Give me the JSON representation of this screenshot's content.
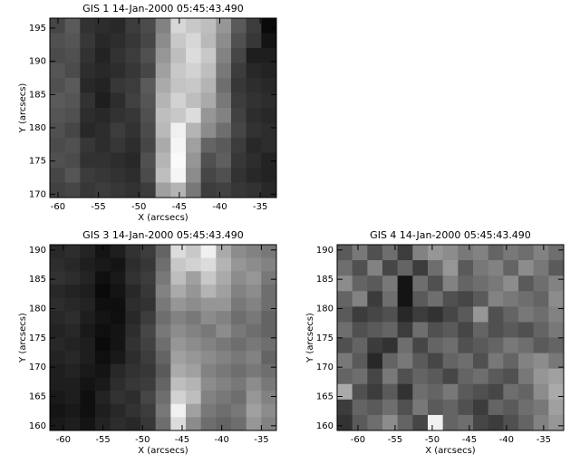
{
  "chart_data": [
    {
      "type": "heatmap",
      "title": "GIS 1 14-Jan-2000 05:45:43.490",
      "xlabel": "X (arcsecs)",
      "ylabel": "Y (arcsecs)",
      "xlim": [
        -61,
        -33
      ],
      "ylim": [
        169.5,
        196.5
      ],
      "xticks": [
        -60,
        -55,
        -50,
        -45,
        -40,
        -35
      ],
      "yticks": [
        170,
        175,
        180,
        185,
        190,
        195
      ],
      "values": [
        [
          70,
          90,
          50,
          45,
          40,
          60,
          75,
          130,
          215,
          200,
          190,
          150,
          90,
          60,
          10
        ],
        [
          80,
          85,
          55,
          40,
          45,
          55,
          70,
          140,
          200,
          215,
          185,
          140,
          80,
          55,
          20
        ],
        [
          75,
          80,
          50,
          35,
          50,
          60,
          80,
          150,
          190,
          220,
          200,
          130,
          70,
          30,
          30
        ],
        [
          85,
          75,
          45,
          40,
          45,
          55,
          70,
          160,
          200,
          210,
          190,
          120,
          60,
          40,
          35
        ],
        [
          80,
          90,
          40,
          35,
          55,
          60,
          90,
          170,
          195,
          200,
          180,
          110,
          55,
          45,
          40
        ],
        [
          90,
          85,
          50,
          30,
          45,
          65,
          85,
          180,
          210,
          190,
          170,
          120,
          60,
          50,
          45
        ],
        [
          85,
          80,
          45,
          40,
          50,
          55,
          80,
          190,
          200,
          220,
          150,
          130,
          65,
          45,
          40
        ],
        [
          80,
          70,
          40,
          45,
          60,
          50,
          75,
          185,
          240,
          180,
          140,
          110,
          70,
          50,
          45
        ],
        [
          75,
          80,
          55,
          45,
          55,
          45,
          70,
          170,
          245,
          160,
          100,
          90,
          60,
          40,
          45
        ],
        [
          80,
          75,
          50,
          50,
          45,
          40,
          80,
          180,
          250,
          150,
          80,
          95,
          55,
          45,
          35
        ],
        [
          70,
          85,
          60,
          55,
          50,
          45,
          75,
          190,
          245,
          140,
          70,
          80,
          50,
          40,
          35
        ],
        [
          65,
          70,
          55,
          60,
          55,
          50,
          60,
          160,
          180,
          120,
          60,
          65,
          55,
          50,
          40
        ]
      ]
    },
    {
      "type": "heatmap",
      "title": "GIS 3 14-Jan-2000 05:45:43.490",
      "xlabel": "X (arcsecs)",
      "ylabel": "Y (arcsecs)",
      "xlim": [
        -61.7,
        -33.1
      ],
      "ylim": [
        159.2,
        190.9
      ],
      "xticks": [
        -60,
        -55,
        -50,
        -45,
        -40,
        -35
      ],
      "yticks": [
        160,
        165,
        170,
        175,
        180,
        185,
        190
      ],
      "values": [
        [
          40,
          45,
          35,
          20,
          30,
          50,
          60,
          100,
          220,
          200,
          240,
          170,
          140,
          130,
          120
        ],
        [
          45,
          40,
          30,
          25,
          20,
          45,
          55,
          110,
          200,
          210,
          220,
          180,
          150,
          140,
          130
        ],
        [
          50,
          45,
          35,
          15,
          25,
          50,
          60,
          120,
          190,
          160,
          200,
          170,
          140,
          150,
          120
        ],
        [
          40,
          35,
          30,
          10,
          20,
          40,
          55,
          130,
          170,
          150,
          180,
          160,
          130,
          140,
          110
        ],
        [
          45,
          40,
          35,
          15,
          15,
          45,
          50,
          120,
          150,
          140,
          150,
          150,
          120,
          130,
          110
        ],
        [
          40,
          45,
          30,
          20,
          15,
          40,
          60,
          110,
          130,
          120,
          140,
          130,
          110,
          120,
          100
        ],
        [
          35,
          40,
          25,
          15,
          20,
          45,
          70,
          120,
          140,
          130,
          120,
          140,
          120,
          110,
          100
        ],
        [
          40,
          35,
          30,
          10,
          20,
          50,
          65,
          110,
          150,
          140,
          130,
          120,
          110,
          120,
          110
        ],
        [
          35,
          40,
          30,
          15,
          25,
          45,
          60,
          100,
          160,
          150,
          140,
          130,
          120,
          130,
          100
        ],
        [
          30,
          35,
          25,
          20,
          40,
          50,
          55,
          90,
          170,
          160,
          130,
          120,
          110,
          120,
          110
        ],
        [
          30,
          30,
          20,
          25,
          45,
          55,
          60,
          100,
          190,
          180,
          140,
          130,
          120,
          140,
          120
        ],
        [
          25,
          30,
          15,
          35,
          50,
          45,
          70,
          110,
          210,
          190,
          130,
          120,
          110,
          150,
          130
        ],
        [
          20,
          25,
          15,
          30,
          40,
          50,
          60,
          120,
          240,
          160,
          120,
          110,
          120,
          160,
          140
        ],
        [
          25,
          30,
          20,
          35,
          45,
          40,
          55,
          110,
          220,
          140,
          110,
          100,
          110,
          150,
          130
        ]
      ]
    },
    {
      "type": "heatmap",
      "title": "GIS 4 14-Jan-2000 05:45:43.490",
      "xlabel": "X (arcsecs)",
      "ylabel": "Y (arcsecs)",
      "xlim": [
        -62.8,
        -32.3
      ],
      "ylim": [
        159.2,
        190.9
      ],
      "xticks": [
        -60,
        -55,
        -50,
        -45,
        -40,
        -35
      ],
      "yticks": [
        160,
        165,
        170,
        175,
        180,
        185,
        190
      ],
      "values": [
        [
          90,
          120,
          80,
          110,
          60,
          130,
          150,
          140,
          120,
          130,
          100,
          120,
          110,
          130,
          110
        ],
        [
          110,
          80,
          130,
          70,
          100,
          60,
          110,
          150,
          90,
          120,
          130,
          100,
          140,
          120,
          90
        ],
        [
          140,
          100,
          90,
          120,
          20,
          110,
          80,
          130,
          100,
          110,
          120,
          140,
          90,
          110,
          130
        ],
        [
          100,
          130,
          60,
          110,
          20,
          90,
          110,
          80,
          70,
          90,
          130,
          120,
          110,
          100,
          140
        ],
        [
          90,
          60,
          70,
          80,
          40,
          60,
          50,
          70,
          90,
          150,
          80,
          100,
          120,
          110,
          130
        ],
        [
          110,
          80,
          90,
          100,
          60,
          110,
          80,
          90,
          70,
          100,
          80,
          90,
          80,
          100,
          120
        ],
        [
          80,
          100,
          60,
          50,
          110,
          70,
          100,
          110,
          80,
          90,
          100,
          120,
          110,
          90,
          100
        ],
        [
          120,
          90,
          40,
          100,
          120,
          90,
          70,
          100,
          110,
          80,
          120,
          100,
          130,
          140,
          120
        ],
        [
          100,
          110,
          70,
          120,
          80,
          100,
          90,
          70,
          100,
          110,
          90,
          80,
          120,
          150,
          160
        ],
        [
          170,
          80,
          60,
          90,
          50,
          110,
          100,
          120,
          90,
          80,
          70,
          110,
          100,
          140,
          170
        ],
        [
          60,
          100,
          90,
          110,
          80,
          120,
          90,
          100,
          80,
          60,
          100,
          90,
          110,
          120,
          160
        ],
        [
          50,
          90,
          110,
          140,
          100,
          70,
          240,
          100,
          110,
          70,
          60,
          80,
          100,
          130,
          150
        ]
      ]
    }
  ]
}
